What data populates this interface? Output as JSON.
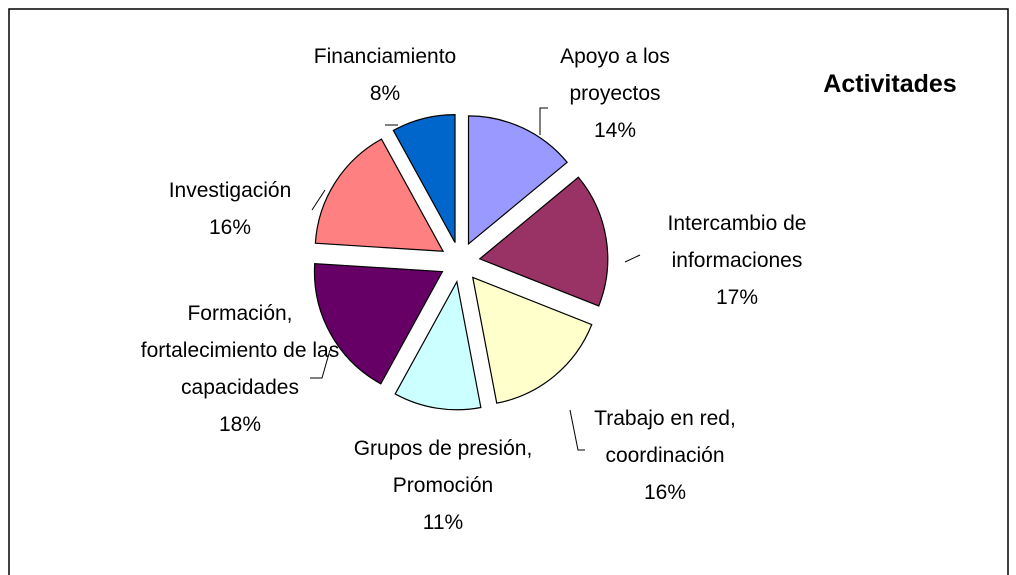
{
  "chart_data": {
    "type": "pie",
    "title": "Activitades",
    "categories": [
      "Apoyo a los proyectos",
      "Intercambio de informaciones",
      "Trabajo en red, coordinación",
      "Grupos de presión, Promoción",
      "Formación, fortalecimiento de las capacidades",
      "Investigación",
      "Financiamiento"
    ],
    "values": [
      14,
      17,
      16,
      11,
      18,
      16,
      8
    ],
    "value_labels": [
      "14%",
      "17%",
      "16%",
      "11%",
      "18%",
      "16%",
      "8%"
    ],
    "colors": [
      "#9999ff",
      "#993366",
      "#ffffcc",
      "#ccffff",
      "#660066",
      "#ff8080",
      "#0066cc"
    ]
  }
}
